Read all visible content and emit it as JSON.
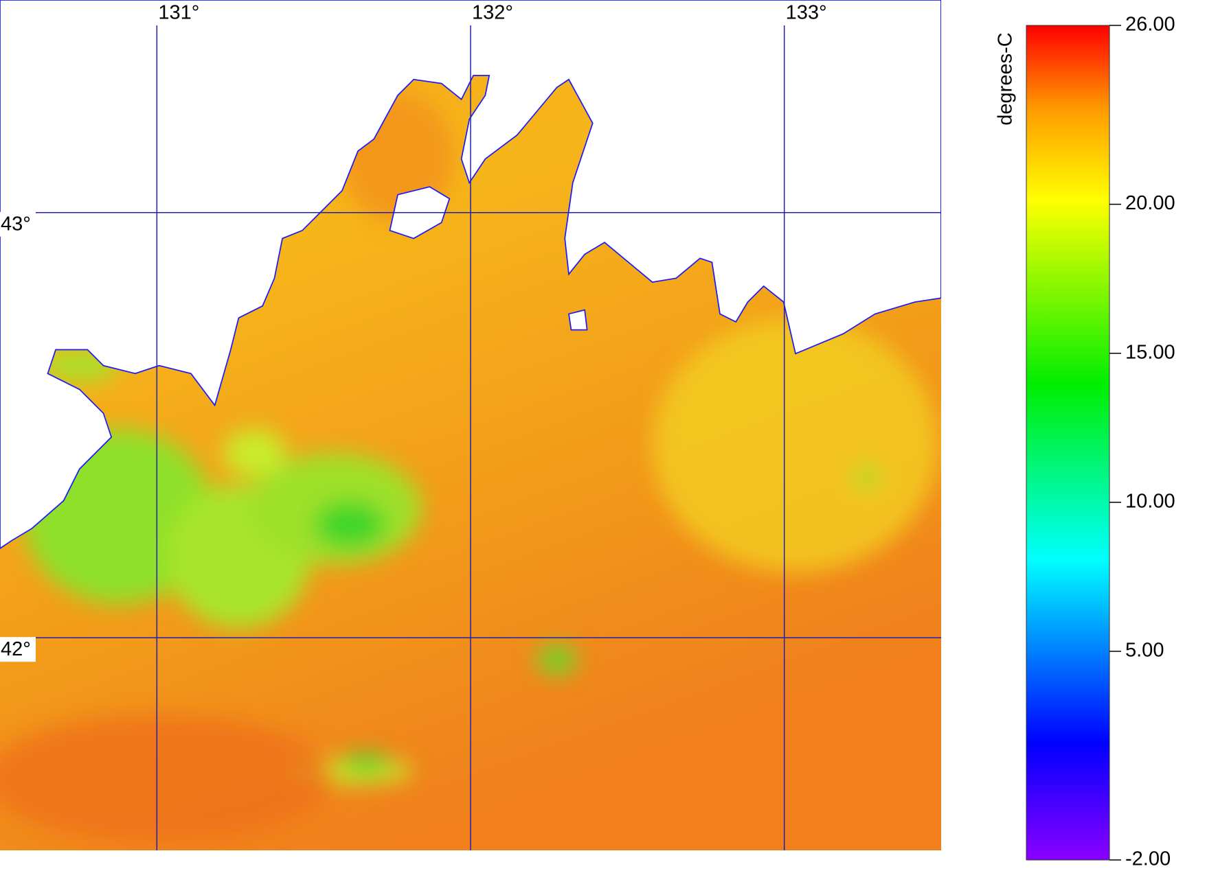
{
  "map": {
    "lon_range": [
      130.5,
      133.5
    ],
    "lat_range": [
      41.5,
      43.5
    ],
    "longitude_lines": [
      {
        "value": 131,
        "label": "131°"
      },
      {
        "value": 132,
        "label": "132°"
      },
      {
        "value": 133,
        "label": "133°"
      }
    ],
    "latitude_lines": [
      {
        "value": 43,
        "label": "43°"
      },
      {
        "value": 42,
        "label": "42°"
      }
    ]
  },
  "colorbar": {
    "label": "degrees-C",
    "range": [
      -2,
      26
    ],
    "ticks": [
      {
        "value": 26,
        "label": "26.00"
      },
      {
        "value": 20,
        "label": "20.00"
      },
      {
        "value": 15,
        "label": "15.00"
      },
      {
        "value": 10,
        "label": "10.00"
      },
      {
        "value": 5,
        "label": "5.00"
      },
      {
        "value": -2,
        "label": "-2.00"
      }
    ]
  }
}
